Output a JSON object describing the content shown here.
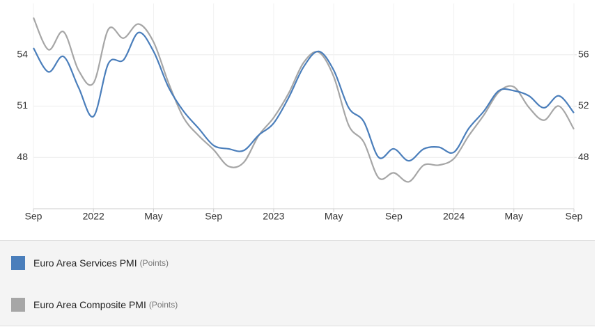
{
  "chart_data": {
    "type": "line",
    "x": [
      "2021-09",
      "2021-10",
      "2021-11",
      "2021-12",
      "2022-01",
      "2022-02",
      "2022-03",
      "2022-04",
      "2022-05",
      "2022-06",
      "2022-07",
      "2022-08",
      "2022-09",
      "2022-10",
      "2022-11",
      "2022-12",
      "2023-01",
      "2023-02",
      "2023-03",
      "2023-04",
      "2023-05",
      "2023-06",
      "2023-07",
      "2023-08",
      "2023-09",
      "2023-10",
      "2023-11",
      "2023-12",
      "2024-01",
      "2024-02",
      "2024-03",
      "2024-04",
      "2024-05",
      "2024-06",
      "2024-07",
      "2024-08",
      "2024-09"
    ],
    "xticks": [
      {
        "value": "2021-09",
        "label": "Sep"
      },
      {
        "value": "2022-01",
        "label": "2022"
      },
      {
        "value": "2022-05",
        "label": "May"
      },
      {
        "value": "2022-09",
        "label": "Sep"
      },
      {
        "value": "2023-01",
        "label": "2023"
      },
      {
        "value": "2023-05",
        "label": "May"
      },
      {
        "value": "2023-09",
        "label": "Sep"
      },
      {
        "value": "2024-01",
        "label": "2024"
      },
      {
        "value": "2024-05",
        "label": "May"
      },
      {
        "value": "2024-09",
        "label": "Sep"
      }
    ],
    "ylim": [
      45,
      57
    ],
    "yticks": [
      48,
      51,
      54
    ],
    "y2lim": [
      44,
      60
    ],
    "y2ticks": [
      48,
      52,
      56
    ],
    "grid": true,
    "series": [
      {
        "name": "Euro Area Services PMI",
        "unit": "(Points)",
        "color": "#4a7ebb",
        "values": [
          54.4,
          53.0,
          53.9,
          52.1,
          50.4,
          53.5,
          53.7,
          55.3,
          54.2,
          52.1,
          50.7,
          49.7,
          48.7,
          48.5,
          48.4,
          49.3,
          50.0,
          51.5,
          53.3,
          54.2,
          53.1,
          50.9,
          50.1,
          48.0,
          48.5,
          47.8,
          48.5,
          48.6,
          48.3,
          49.7,
          50.7,
          51.9,
          51.9,
          51.6,
          50.9,
          51.6,
          50.6
        ]
      },
      {
        "name": "Euro Area Composite PMI",
        "unit": "(Points)",
        "color": "#a6a6a6",
        "axis": "y2",
        "values": [
          58.9,
          56.4,
          57.8,
          54.8,
          53.8,
          58.0,
          57.3,
          58.4,
          57.0,
          53.8,
          51.1,
          49.7,
          48.6,
          47.3,
          47.6,
          49.7,
          51.1,
          53.0,
          55.4,
          56.2,
          54.3,
          50.5,
          49.2,
          46.4,
          46.8,
          46.1,
          47.4,
          47.4,
          47.9,
          49.7,
          51.3,
          53.1,
          53.5,
          51.9,
          50.9,
          52.0,
          50.2
        ]
      }
    ]
  }
}
